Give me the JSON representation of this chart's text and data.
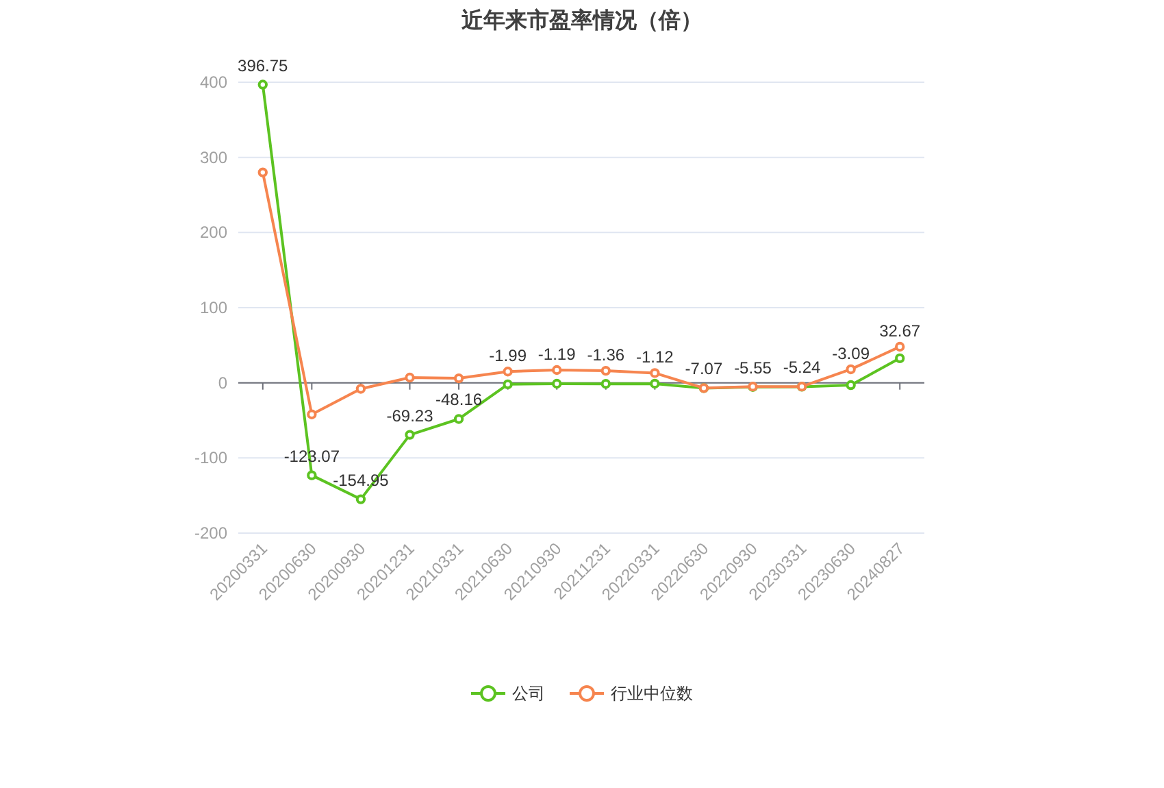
{
  "chart_data": {
    "type": "line",
    "title": "近年来市盈率情况（倍）",
    "categories": [
      "20200331",
      "20200630",
      "20200930",
      "20201231",
      "20210331",
      "20210630",
      "20210930",
      "20211231",
      "20220331",
      "20220630",
      "20220930",
      "20230331",
      "20230630",
      "20240827"
    ],
    "series": [
      {
        "name": "公司",
        "color": "#5cc321",
        "values": [
          396.75,
          -123.07,
          -154.95,
          -69.23,
          -48.16,
          -1.99,
          -1.19,
          -1.36,
          -1.12,
          -7.07,
          -5.55,
          -5.24,
          -3.09,
          32.67
        ],
        "value_labels": [
          "396.75",
          "-123.07",
          "-154.95",
          "-69.23",
          "-48.16",
          "-1.99",
          "-1.19",
          "-1.36",
          "-1.12",
          "-7.07",
          "-5.55",
          "-5.24",
          "-3.09",
          "32.67"
        ]
      },
      {
        "name": "行业中位数",
        "color": "#f6854f",
        "values": [
          280,
          -42,
          -8,
          7,
          6,
          15,
          17,
          16,
          13,
          -7,
          -5,
          -5,
          18,
          48
        ]
      }
    ],
    "ylim": [
      -200,
      400
    ],
    "yticks": [
      -200,
      -100,
      0,
      100,
      200,
      300,
      400
    ],
    "grid": "y",
    "legend": "bottom",
    "marker": "circle",
    "line_style": "solid"
  }
}
